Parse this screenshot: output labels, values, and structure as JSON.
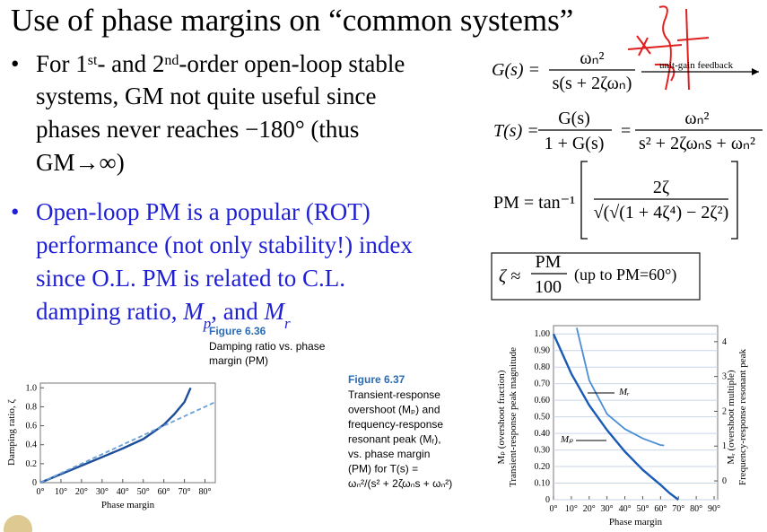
{
  "title": "Use of phase margins on “common systems”",
  "bullet1": {
    "line1": {
      "a": "For 1",
      "sup1": "st",
      "b": "- and 2",
      "sup2": "nd",
      "c": "-order open-loop stable"
    },
    "line2": "systems, GM not quite useful since",
    "line3": "phases never reaches  −180° (thus",
    "line4": "GM→∞)"
  },
  "bullet2": {
    "line1": "Open-loop PM is a popular (ROT)",
    "line2": "performance (not only stability!) index",
    "line3": "since O.L. PM is related to C.L.",
    "line4": {
      "a": "damping ratio, ",
      "m1": "M",
      "sub1": "p",
      "b": ", and ",
      "m2": "M",
      "sub2": "r"
    }
  },
  "equations": {
    "open_loop": {
      "lhs": "G(s) =",
      "num": "ωₙ²",
      "den": "s(s + 2ζωₙ)",
      "note": "unit-gain feedback"
    },
    "closed_loop": {
      "lhs": "T(s) =",
      "num1": "G(s)",
      "den1": "1 + G(s)",
      "eq": "=",
      "num2": "ωₙ²",
      "den2": "s² + 2ζωₙs + ωₙ²"
    },
    "pm": {
      "lhs": "PM = tan⁻¹",
      "num": "2ζ",
      "den": "√(√(1 + 4ζ⁴) − 2ζ²)"
    },
    "approx": {
      "lhs": "ζ ≈",
      "num": "PM",
      "den": "100",
      "note": "(up to PM=60°)"
    }
  },
  "figure_6_36": {
    "label": "Figure 6.36",
    "caption": [
      "Damping ratio vs. phase",
      "margin (PM)"
    ],
    "ylabel": "Damping ratio, ζ",
    "xlabel": "Phase margin",
    "xlim": [
      0,
      85
    ],
    "ylim": [
      0,
      1.05
    ],
    "xticks": [
      {
        "value": 0,
        "label": "0°"
      },
      {
        "value": 10,
        "label": "10°"
      },
      {
        "value": 20,
        "label": "20°"
      },
      {
        "value": 30,
        "label": "30°"
      },
      {
        "value": 40,
        "label": "40°"
      },
      {
        "value": 50,
        "label": "50°"
      },
      {
        "value": 60,
        "label": "60°"
      },
      {
        "value": 70,
        "label": "70°"
      },
      {
        "value": 80,
        "label": "80°"
      }
    ],
    "yticks": [
      0,
      0.2,
      0.4,
      0.6,
      0.8,
      {
        "value": 1,
        "label": "1.0"
      }
    ],
    "series": [
      {
        "x": [
          0,
          10,
          20,
          30,
          40,
          50,
          60,
          65,
          70,
          73
        ],
        "y": [
          0,
          0.09,
          0.18,
          0.27,
          0.36,
          0.46,
          0.61,
          0.72,
          0.85,
          1.0
        ],
        "color": "#1f4e9a"
      },
      {
        "x": [
          0,
          85
        ],
        "y": [
          0,
          0.85
        ],
        "color": "#6aa0d8"
      }
    ]
  },
  "figure_6_37": {
    "label": "Figure 6.37",
    "caption": [
      "Transient-response",
      "overshoot (Mₚ) and",
      "frequency-response",
      "resonant peak (Mᵣ),",
      "vs. phase margin",
      "(PM) for T(s) =",
      "ωₙ²/(s² + 2ζωₙs + ωₙ²)"
    ],
    "ylabel": [
      "Mₚ (overshoot fraction)",
      "Transient-response peak magnitude"
    ],
    "y2label": [
      "Mᵣ (overshoot multiple)",
      "Frequency-response resonant peak"
    ],
    "xlabel": "Phase margin",
    "xlim": [
      0,
      92
    ],
    "ylim": [
      0,
      1.05
    ],
    "y2lim": [
      -0.54,
      4.46
    ],
    "xticks": [
      {
        "value": 0,
        "label": "0°"
      },
      {
        "value": 10,
        "label": "10°"
      },
      {
        "value": 20,
        "label": "20°"
      },
      {
        "value": 30,
        "label": "30°"
      },
      {
        "value": 40,
        "label": "40°"
      },
      {
        "value": 50,
        "label": "50°"
      },
      {
        "value": 60,
        "label": "60°"
      },
      {
        "value": 70,
        "label": "70°"
      },
      {
        "value": 80,
        "label": "80°"
      },
      {
        "value": 90,
        "label": "90°"
      }
    ],
    "yticks": [
      0,
      {
        "value": 0.1,
        "label": "0.10"
      },
      {
        "value": 0.2,
        "label": "0.20"
      },
      {
        "value": 0.3,
        "label": "0.30"
      },
      {
        "value": 0.4,
        "label": "0.40"
      },
      {
        "value": 0.5,
        "label": "0.50"
      },
      {
        "value": 0.6,
        "label": "0.60"
      },
      {
        "value": 0.7,
        "label": "0.70"
      },
      {
        "value": 0.8,
        "label": "0.80"
      },
      {
        "value": 0.9,
        "label": "0.90"
      },
      {
        "value": 1,
        "label": "1.00"
      }
    ],
    "y2ticks": [
      0,
      1,
      2,
      3,
      4
    ],
    "annotations": [
      "Mᵣ",
      "Mₚ"
    ],
    "series": [
      {
        "name": "Mₚ",
        "x": [
          0,
          10,
          20,
          30,
          40,
          50,
          60,
          65,
          70
        ],
        "y": [
          1.0,
          0.76,
          0.57,
          0.42,
          0.29,
          0.18,
          0.09,
          0.04,
          0
        ],
        "color": "#1a5bb5"
      },
      {
        "name": "Mᵣ",
        "axis": "y2",
        "x": [
          13,
          20,
          30,
          40,
          50,
          60,
          62
        ],
        "y": [
          4.4,
          2.89,
          1.92,
          1.49,
          1.22,
          1.03,
          1.02
        ],
        "color": "#4a8fd6"
      }
    ]
  }
}
